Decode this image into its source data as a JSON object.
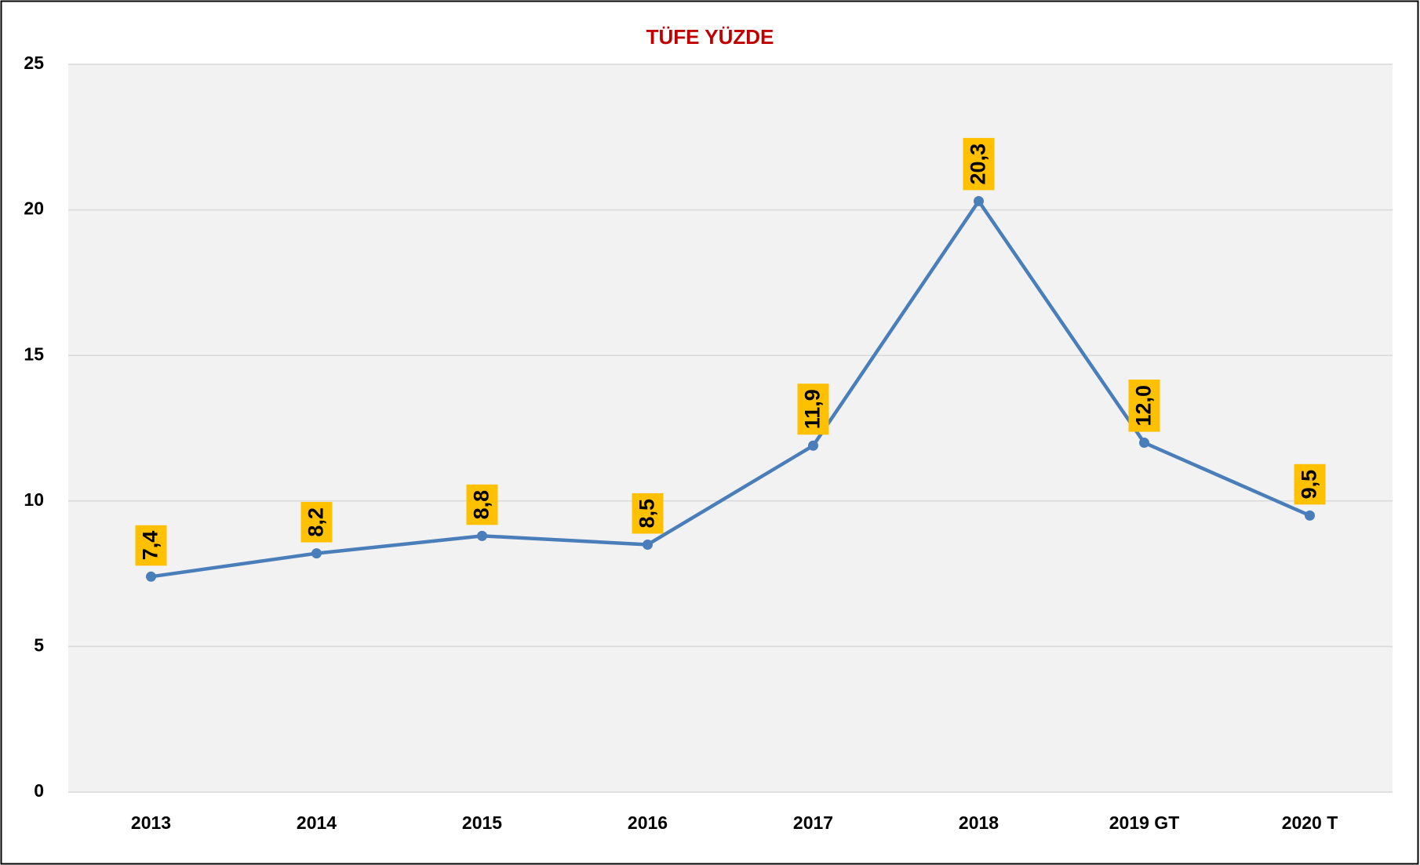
{
  "chart_data": {
    "type": "line",
    "title": "TÜFE YÜZDE",
    "categories": [
      "2013",
      "2014",
      "2015",
      "2016",
      "2017",
      "2018",
      "2019 GT",
      "2020 T"
    ],
    "series": [
      {
        "name": "TÜFE",
        "color": "#4a7ebb",
        "values": [
          7.4,
          8.2,
          8.8,
          8.5,
          11.9,
          20.3,
          12.0,
          9.5
        ],
        "value_labels": [
          "7,4",
          "8,2",
          "8,8",
          "8,5",
          "11,9",
          "20,3",
          "12,0",
          "9,5"
        ]
      }
    ],
    "label_color": "#ffc000",
    "ylim": [
      0,
      25
    ],
    "yticks": [
      0,
      5,
      10,
      15,
      20,
      25
    ],
    "grid": true,
    "legend": false
  }
}
